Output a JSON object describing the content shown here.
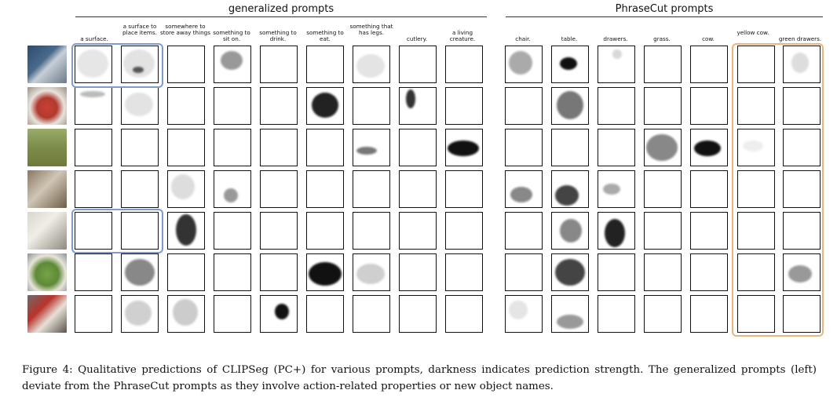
{
  "figure": {
    "group_generalized_title": "generalized prompts",
    "group_phrasecut_title": "PhraseCut prompts",
    "generalized_columns": [
      "a surface.",
      "a surface to place items.",
      "somewhere to store away things",
      "something to sit on.",
      "something to drink.",
      "something to eat.",
      "something that has legs.",
      "cutlery.",
      "a living creature."
    ],
    "phrasecut_columns": [
      "chair.",
      "table.",
      "drawers.",
      "grass.",
      "cow.",
      "yellow cow.",
      "green drawers."
    ],
    "row_images": [
      "living-room",
      "strawberries",
      "cow-field",
      "kitchen-chairs",
      "kitchen-drawers",
      "salad-plate",
      "coffee-cup"
    ],
    "colors": {
      "blue_highlight": "#7e9bd1",
      "orange_highlight": "#e9b57d"
    }
  },
  "caption": {
    "text": "Figure 4: Qualitative predictions of CLIPSeg (PC+) for various prompts, darkness indicates prediction strength. The generalized prompts (left) deviate from the PhraseCut prompts as they involve action-related properties or new object names."
  }
}
